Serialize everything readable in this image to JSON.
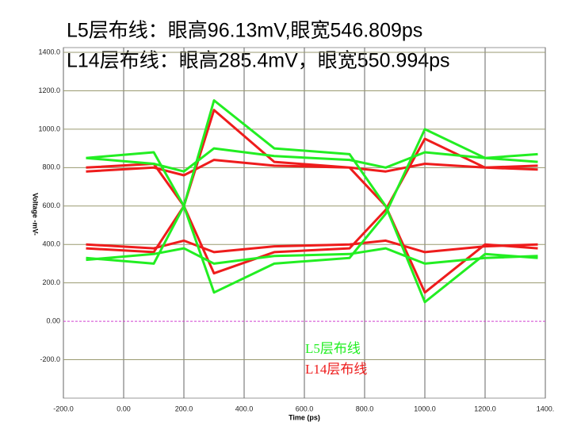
{
  "chart_data": {
    "type": "line",
    "title": "L5层布线：眼高96.13mV,眼宽546.809ps",
    "subtitle": "L14层布线：眼高285.4mV，眼宽550.994ps",
    "x_label": "Time (ps)",
    "y_label": "Voltage -mV-",
    "xlim": [
      -200,
      1400
    ],
    "ylim": [
      -400,
      1400
    ],
    "xticks": [
      {
        "value": -200,
        "label": "-200.0"
      },
      {
        "value": 0,
        "label": "0.00"
      },
      {
        "value": 200,
        "label": "200.0"
      },
      {
        "value": 400,
        "label": "400.0"
      },
      {
        "value": 600,
        "label": "600.0"
      },
      {
        "value": 800,
        "label": "800.0"
      },
      {
        "value": 1000,
        "label": "1000.0"
      },
      {
        "value": 1200,
        "label": "1200.0"
      },
      {
        "value": 1400,
        "label": "1400."
      }
    ],
    "yticks": [
      {
        "value": -200,
        "label": "-200.0"
      },
      {
        "value": 0,
        "label": "0.00"
      },
      {
        "value": 200,
        "label": "200.0"
      },
      {
        "value": 400,
        "label": "400.0"
      },
      {
        "value": 600,
        "label": "600.0"
      },
      {
        "value": 800,
        "label": "800.0"
      },
      {
        "value": 1000,
        "label": "1000.0"
      },
      {
        "value": 1200,
        "label": "1200.0"
      },
      {
        "value": 1400,
        "label": "1400.0"
      }
    ],
    "grid": true,
    "series": [
      {
        "name": "L14层布线",
        "color": "#ee1c1c",
        "x": [
          -125,
          100,
          200,
          300,
          500,
          750,
          870,
          1000,
          1200,
          1375,
          null,
          -125,
          100,
          200,
          300,
          500,
          750,
          870,
          1000,
          1200,
          1375,
          null,
          -125,
          100,
          200,
          300,
          500,
          750,
          870,
          1000,
          1200,
          1375,
          null,
          -125,
          100,
          200,
          300,
          500,
          750,
          870,
          1000,
          1200,
          1375
        ],
        "values": [
          800,
          820,
          600,
          250,
          360,
          380,
          580,
          950,
          800,
          790,
          null,
          380,
          360,
          600,
          1100,
          830,
          800,
          600,
          150,
          400,
          380,
          null,
          780,
          800,
          760,
          840,
          810,
          800,
          780,
          820,
          800,
          810,
          null,
          400,
          380,
          420,
          360,
          390,
          400,
          420,
          360,
          390,
          400
        ]
      },
      {
        "name": "L5层布线",
        "color": "#22ee22",
        "x": [
          -125,
          100,
          200,
          300,
          500,
          750,
          870,
          1000,
          1200,
          1375,
          null,
          -125,
          100,
          200,
          300,
          500,
          750,
          870,
          1000,
          1200,
          1375,
          null,
          -125,
          100,
          200,
          300,
          500,
          750,
          870,
          1000,
          1200,
          1375,
          null,
          -125,
          100,
          200,
          300,
          500,
          750,
          870,
          1000,
          1200,
          1375
        ],
        "values": [
          850,
          880,
          600,
          150,
          300,
          330,
          560,
          1000,
          850,
          830,
          null,
          330,
          300,
          600,
          1150,
          900,
          870,
          600,
          100,
          350,
          330,
          null,
          850,
          820,
          780,
          900,
          860,
          840,
          800,
          880,
          850,
          870,
          null,
          320,
          350,
          380,
          300,
          340,
          350,
          380,
          300,
          330,
          340
        ]
      }
    ]
  }
}
